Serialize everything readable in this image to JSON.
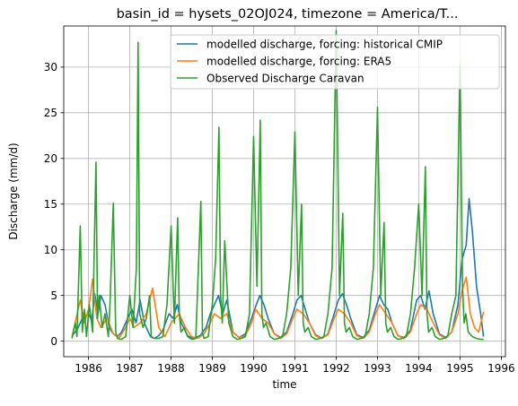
{
  "chart_data": {
    "type": "line",
    "title": "basin_id = hysets_02OJ024, timezone = America/T...",
    "xlabel": "time",
    "ylabel": "Discharge (mm/d)",
    "xlim": [
      1985.4,
      1996.1
    ],
    "ylim": [
      -1.7,
      34.5
    ],
    "xticks": [
      1986,
      1987,
      1988,
      1989,
      1990,
      1991,
      1992,
      1993,
      1994,
      1995,
      1996
    ],
    "xtick_labels": [
      "1986",
      "1987",
      "1988",
      "1989",
      "1990",
      "1991",
      "1992",
      "1993",
      "1994",
      "1995",
      "1996"
    ],
    "yticks": [
      0,
      5,
      10,
      15,
      20,
      25,
      30
    ],
    "ytick_labels": [
      "0",
      "5",
      "10",
      "15",
      "20",
      "25",
      "30"
    ],
    "grid": true,
    "legend": "top-right",
    "series": [
      {
        "name": "modelled discharge, forcing: historical CMIP",
        "color": "#1f77b4",
        "x": [
          1985.6,
          1985.72,
          1985.85,
          1986.0,
          1986.08,
          1986.15,
          1986.23,
          1986.3,
          1986.4,
          1986.5,
          1986.6,
          1986.7,
          1986.8,
          1986.95,
          1987.05,
          1987.15,
          1987.25,
          1987.35,
          1987.5,
          1987.6,
          1987.7,
          1987.8,
          1987.95,
          1988.05,
          1988.15,
          1988.25,
          1988.4,
          1988.55,
          1988.7,
          1988.85,
          1988.95,
          1989.05,
          1989.15,
          1989.25,
          1989.35,
          1989.5,
          1989.65,
          1989.8,
          1989.95,
          1990.05,
          1990.15,
          1990.25,
          1990.35,
          1990.5,
          1990.65,
          1990.8,
          1990.95,
          1991.05,
          1991.15,
          1991.25,
          1991.35,
          1991.5,
          1991.65,
          1991.8,
          1991.95,
          1992.05,
          1992.15,
          1992.25,
          1992.35,
          1992.5,
          1992.65,
          1992.8,
          1992.95,
          1993.05,
          1993.15,
          1993.25,
          1993.35,
          1993.5,
          1993.65,
          1993.8,
          1993.95,
          1994.05,
          1994.15,
          1994.25,
          1994.35,
          1994.5,
          1994.65,
          1994.8,
          1994.95,
          1995.05,
          1995.15,
          1995.22,
          1995.3,
          1995.4,
          1995.5,
          1995.57
        ],
        "y": [
          0.6,
          1.2,
          2.5,
          3.0,
          2.2,
          5.2,
          3.0,
          5.0,
          4.0,
          1.5,
          0.8,
          0.5,
          1.0,
          2.5,
          3.5,
          2.0,
          4.5,
          2.0,
          0.5,
          0.3,
          0.6,
          1.2,
          3.0,
          2.5,
          4.0,
          2.0,
          0.6,
          0.3,
          0.6,
          1.5,
          3.0,
          4.0,
          5.0,
          3.0,
          4.5,
          1.0,
          0.4,
          0.8,
          2.5,
          3.8,
          5.0,
          4.0,
          2.5,
          0.8,
          0.4,
          1.0,
          3.0,
          4.5,
          5.0,
          3.5,
          2.0,
          0.7,
          0.3,
          0.8,
          3.0,
          4.5,
          5.2,
          4.0,
          2.5,
          0.7,
          0.4,
          1.2,
          3.5,
          5.0,
          4.0,
          3.5,
          2.0,
          0.6,
          0.4,
          1.2,
          4.5,
          5.0,
          3.5,
          5.5,
          3.0,
          0.8,
          0.4,
          1.0,
          4.0,
          9.0,
          10.5,
          15.6,
          12.0,
          6.0,
          3.0,
          0.5
        ]
      },
      {
        "name": "modelled discharge, forcing: ERA5",
        "color": "#ff7f0e",
        "x": [
          1985.6,
          1985.7,
          1985.8,
          1985.9,
          1986.0,
          1986.1,
          1986.2,
          1986.3,
          1986.45,
          1986.6,
          1986.75,
          1986.9,
          1987.0,
          1987.1,
          1987.25,
          1987.4,
          1987.55,
          1987.7,
          1987.85,
          1988.0,
          1988.1,
          1988.2,
          1988.35,
          1988.5,
          1988.65,
          1988.8,
          1988.95,
          1989.05,
          1989.2,
          1989.35,
          1989.5,
          1989.65,
          1989.8,
          1989.95,
          1990.05,
          1990.2,
          1990.35,
          1990.5,
          1990.65,
          1990.8,
          1990.95,
          1991.05,
          1991.2,
          1991.35,
          1991.5,
          1991.65,
          1991.8,
          1991.95,
          1992.05,
          1992.2,
          1992.35,
          1992.5,
          1992.65,
          1992.8,
          1992.95,
          1993.05,
          1993.2,
          1993.35,
          1993.5,
          1993.65,
          1993.8,
          1993.95,
          1994.05,
          1994.2,
          1994.35,
          1994.5,
          1994.65,
          1994.8,
          1994.95,
          1995.05,
          1995.15,
          1995.25,
          1995.35,
          1995.45,
          1995.57
        ],
        "y": [
          0.5,
          2.5,
          4.5,
          2.0,
          3.5,
          6.8,
          2.5,
          1.5,
          2.5,
          0.8,
          0.4,
          1.5,
          2.5,
          1.5,
          2.0,
          3.0,
          5.8,
          1.5,
          0.5,
          2.0,
          2.5,
          3.0,
          1.5,
          0.5,
          0.3,
          0.8,
          2.0,
          3.0,
          2.5,
          3.0,
          1.0,
          0.4,
          0.6,
          2.0,
          3.5,
          2.5,
          2.0,
          0.8,
          0.3,
          0.8,
          2.5,
          3.5,
          3.0,
          2.0,
          0.6,
          0.3,
          0.7,
          2.5,
          3.5,
          3.0,
          2.0,
          0.6,
          0.3,
          1.0,
          3.0,
          4.0,
          3.0,
          2.0,
          0.6,
          0.3,
          1.0,
          3.0,
          4.0,
          3.5,
          2.0,
          0.7,
          0.3,
          1.0,
          3.0,
          5.5,
          7.0,
          3.0,
          1.5,
          1.0,
          3.2
        ]
      },
      {
        "name": "Observed Discharge Caravan",
        "color": "#2ca02c",
        "x": [
          1985.6,
          1985.68,
          1985.72,
          1985.8,
          1985.85,
          1985.9,
          1985.95,
          1986.02,
          1986.1,
          1986.18,
          1986.22,
          1986.26,
          1986.33,
          1986.4,
          1986.48,
          1986.52,
          1986.6,
          1986.66,
          1986.7,
          1986.8,
          1986.9,
          1987.0,
          1987.08,
          1987.16,
          1987.2,
          1987.24,
          1987.32,
          1987.4,
          1987.48,
          1987.52,
          1987.6,
          1987.7,
          1987.8,
          1987.9,
          1988.0,
          1988.08,
          1988.16,
          1988.2,
          1988.24,
          1988.32,
          1988.4,
          1988.5,
          1988.6,
          1988.72,
          1988.76,
          1988.8,
          1988.9,
          1989.0,
          1989.08,
          1989.16,
          1989.2,
          1989.24,
          1989.3,
          1989.4,
          1989.5,
          1989.6,
          1989.7,
          1989.8,
          1989.9,
          1990.0,
          1990.08,
          1990.16,
          1990.2,
          1990.24,
          1990.3,
          1990.4,
          1990.5,
          1990.6,
          1990.7,
          1990.8,
          1990.9,
          1991.0,
          1991.08,
          1991.16,
          1991.2,
          1991.24,
          1991.32,
          1991.4,
          1991.5,
          1991.6,
          1991.7,
          1991.8,
          1991.9,
          1992.0,
          1992.08,
          1992.16,
          1992.2,
          1992.24,
          1992.32,
          1992.4,
          1992.5,
          1992.6,
          1992.7,
          1992.8,
          1992.9,
          1993.0,
          1993.08,
          1993.16,
          1993.2,
          1993.24,
          1993.32,
          1993.4,
          1993.5,
          1993.6,
          1993.7,
          1993.8,
          1993.9,
          1994.0,
          1994.08,
          1994.16,
          1994.2,
          1994.24,
          1994.32,
          1994.4,
          1994.5,
          1994.6,
          1994.7,
          1994.8,
          1994.9,
          1995.0,
          1995.06,
          1995.1,
          1995.14,
          1995.2,
          1995.3,
          1995.4,
          1995.5,
          1995.57
        ],
        "y": [
          0.3,
          2.0,
          0.5,
          12.6,
          1.0,
          3.5,
          0.5,
          4.0,
          1.0,
          19.6,
          2.5,
          5.0,
          1.5,
          3.0,
          0.5,
          4.0,
          15.1,
          1.0,
          0.3,
          0.2,
          0.5,
          5.0,
          1.5,
          8.0,
          32.7,
          3.0,
          1.5,
          2.5,
          5.0,
          0.5,
          0.3,
          0.3,
          0.5,
          4.0,
          12.6,
          2.0,
          13.5,
          3.0,
          1.0,
          1.5,
          0.5,
          0.2,
          0.3,
          15.3,
          1.0,
          0.3,
          0.5,
          4.0,
          9.0,
          23.4,
          5.0,
          2.0,
          11.0,
          2.0,
          0.5,
          0.2,
          0.3,
          0.5,
          3.0,
          22.4,
          6.0,
          24.2,
          3.0,
          1.5,
          2.0,
          0.5,
          0.2,
          0.3,
          0.5,
          3.0,
          8.0,
          22.9,
          5.0,
          15.0,
          2.0,
          1.0,
          1.5,
          0.5,
          0.2,
          0.3,
          0.5,
          3.0,
          8.0,
          34.0,
          5.0,
          14.0,
          2.0,
          1.0,
          1.5,
          0.5,
          0.2,
          0.3,
          0.5,
          3.0,
          8.0,
          25.6,
          5.0,
          13.0,
          2.0,
          1.0,
          1.5,
          0.5,
          0.2,
          0.3,
          0.5,
          3.0,
          8.0,
          15.0,
          5.0,
          19.1,
          3.0,
          1.0,
          1.5,
          0.5,
          0.2,
          0.3,
          0.5,
          3.0,
          5.0,
          30.3,
          6.0,
          2.0,
          3.0,
          1.0,
          0.5,
          0.3,
          0.2,
          0.2
        ]
      }
    ]
  }
}
